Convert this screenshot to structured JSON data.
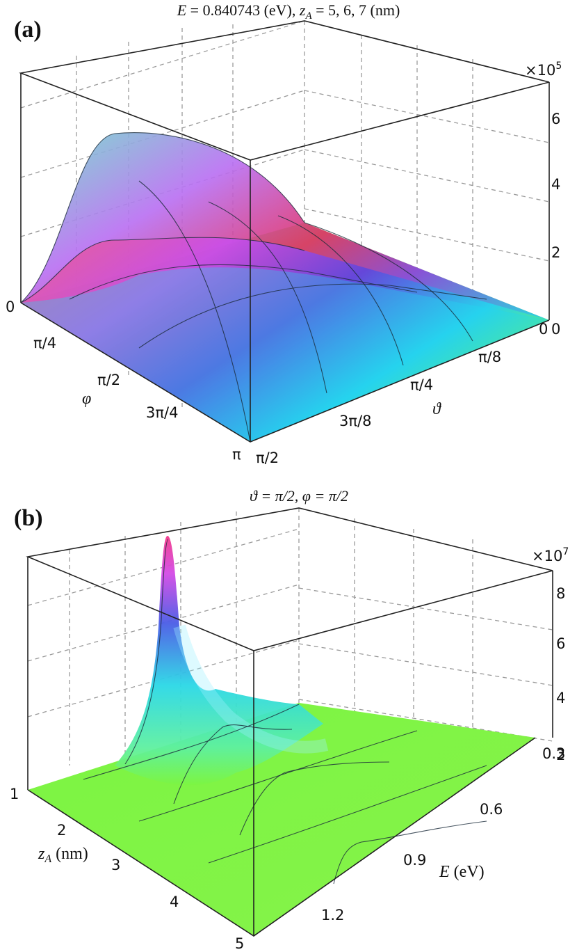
{
  "chart_data": [
    {
      "type": "surface3d",
      "panel_label": "(a)",
      "title": {
        "part1_var": "E",
        "part1_rest": " = 0.840743 (eV), ",
        "part2_var": "z",
        "part2_sub": "A",
        "part2_rest": " = 5, 6, 7 (nm)"
      },
      "z_multiplier": "×10",
      "z_multiplier_exp": "5",
      "z_ticks": [
        "0",
        "2",
        "4",
        "6"
      ],
      "phi_axis": {
        "label": "φ",
        "ticks": [
          "0",
          "π/4",
          "π/2",
          "3π/4",
          "π"
        ]
      },
      "theta_axis": {
        "label": "ϑ",
        "ticks": [
          "π/2",
          "3π/8",
          "π/4",
          "π/8",
          "0"
        ]
      },
      "series": [
        {
          "name": "z_A = 5 nm",
          "peak": 6.5
        },
        {
          "name": "z_A = 6 nm",
          "peak": 3.6
        },
        {
          "name": "z_A = 7 nm",
          "peak": 2.0
        }
      ]
    },
    {
      "type": "surface3d",
      "panel_label": "(b)",
      "title": {
        "text": "ϑ = π/2, φ = π/2"
      },
      "z_multiplier": "×10",
      "z_multiplier_exp": "7",
      "z_ticks": [
        "2",
        "4",
        "6",
        "8"
      ],
      "zA_axis": {
        "label_var": "z",
        "label_sub": "A",
        "label_rest": " (nm)",
        "ticks": [
          "1",
          "2",
          "3",
          "4",
          "5"
        ]
      },
      "E_axis": {
        "label_var": "E",
        "label_rest": " (eV)",
        "ticks": [
          "0.3",
          "0.6",
          "0.9",
          "1.2"
        ]
      },
      "peak": {
        "z_A": 1,
        "E": 0.84,
        "value": 9.5
      }
    }
  ]
}
